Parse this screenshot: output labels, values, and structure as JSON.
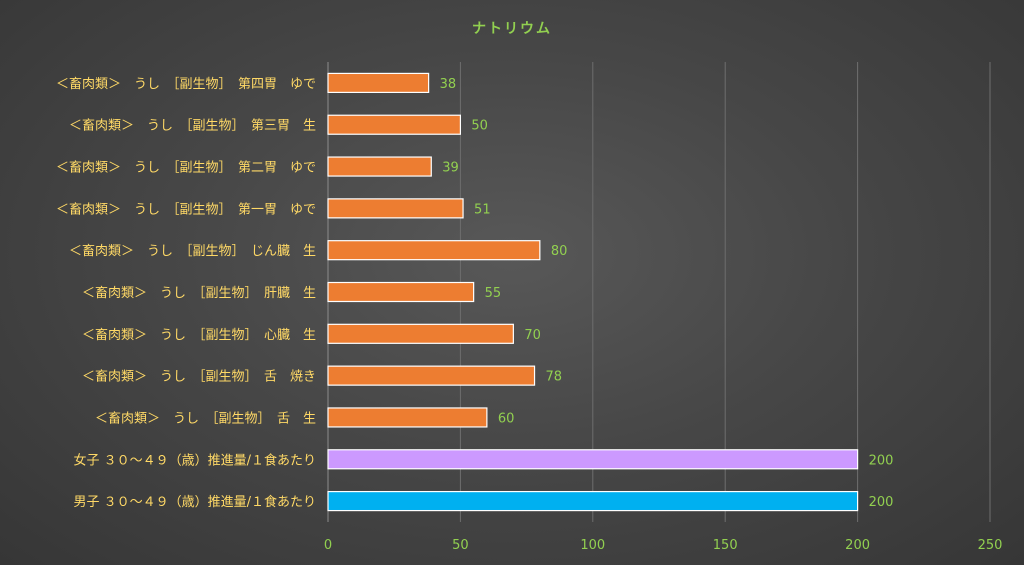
{
  "chart_data": {
    "type": "bar",
    "orientation": "horizontal",
    "title": "ナトリウム",
    "xlabel": "",
    "ylabel": "",
    "xlim": [
      0,
      250
    ],
    "ticks": [
      "0",
      "50",
      "100",
      "150",
      "200",
      "250"
    ],
    "grid": true,
    "legend": "none",
    "categories": [
      "＜畜肉類＞　うし　［副生物］　第四胃　ゆで",
      "＜畜肉類＞　うし　［副生物］　第三胃　生",
      "＜畜肉類＞　うし　［副生物］　第二胃　ゆで",
      "＜畜肉類＞　うし　［副生物］　第一胃　ゆで",
      "＜畜肉類＞　うし　［副生物］　じん臓　生",
      "＜畜肉類＞　うし　［副生物］　肝臓　生",
      "＜畜肉類＞　うし　［副生物］　心臓　生",
      "＜畜肉類＞　うし　［副生物］　舌　焼き",
      "＜畜肉類＞　うし　［副生物］　舌　生",
      "女子 ３０～４９（歳）推進量/１食あたり",
      "男子 ３０～４９（歳）推進量/１食あたり"
    ],
    "values": [
      38,
      50,
      39,
      51,
      80,
      55,
      70,
      78,
      60,
      200,
      200
    ],
    "bar_colors": [
      "#ed7d31",
      "#ed7d31",
      "#ed7d31",
      "#ed7d31",
      "#ed7d31",
      "#ed7d31",
      "#ed7d31",
      "#ed7d31",
      "#ed7d31",
      "#cc99ff",
      "#00b0f0"
    ]
  }
}
